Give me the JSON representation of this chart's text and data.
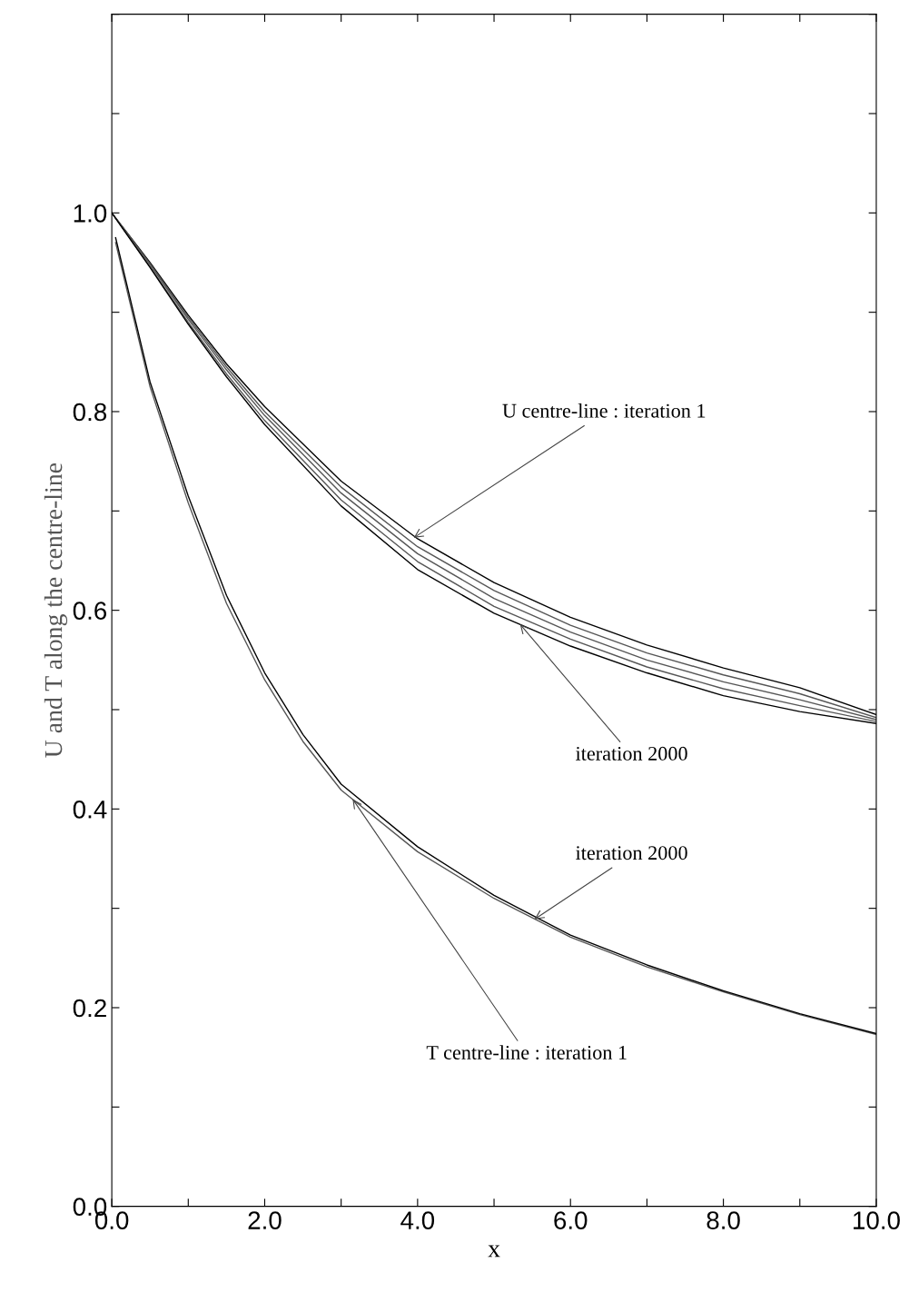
{
  "chart_data": {
    "type": "line",
    "xlabel": "x",
    "ylabel": "U and T along the centre-line",
    "xlim": [
      0,
      10
    ],
    "ylim": [
      0,
      1.2
    ],
    "xticks": [
      {
        "value": 0,
        "label": "0.0"
      },
      {
        "value": 1,
        "label": null
      },
      {
        "value": 2,
        "label": "2.0"
      },
      {
        "value": 3,
        "label": null
      },
      {
        "value": 4,
        "label": "4.0"
      },
      {
        "value": 5,
        "label": null
      },
      {
        "value": 6,
        "label": "6.0"
      },
      {
        "value": 7,
        "label": null
      },
      {
        "value": 8,
        "label": "8.0"
      },
      {
        "value": 9,
        "label": null
      },
      {
        "value": 10,
        "label": "10.0"
      }
    ],
    "yticks": [
      {
        "value": 0,
        "label": "0.0"
      },
      {
        "value": 0.1,
        "label": null
      },
      0.2,
      {
        "value": 0.3,
        "label": null
      },
      0.4,
      {
        "value": 0.5,
        "label": null
      },
      0.6,
      {
        "value": 0.7,
        "label": null
      },
      0.8,
      {
        "value": 0.9,
        "label": null
      },
      {
        "value": 1,
        "label": "1.0"
      },
      {
        "value": 1.1,
        "label": null
      },
      {
        "value": 1.2,
        "label": null
      }
    ],
    "grid": false,
    "legend": false,
    "marker": "none",
    "line_style": "solid",
    "series": [
      {
        "color": "#000000",
        "x": [
          0,
          0.5,
          1,
          1.5,
          2,
          3,
          4,
          5,
          6,
          7,
          8,
          9,
          10
        ],
        "values": [
          1.0,
          0.95,
          0.897,
          0.848,
          0.805,
          0.73,
          0.672,
          0.628,
          0.593,
          0.565,
          0.542,
          0.522,
          0.495
        ]
      },
      {
        "color": "#555555",
        "x": [
          0,
          0.5,
          1,
          1.5,
          2,
          3,
          4,
          5,
          6,
          7,
          8,
          9,
          10
        ],
        "values": [
          1.0,
          0.949,
          0.895,
          0.845,
          0.8,
          0.724,
          0.664,
          0.62,
          0.585,
          0.557,
          0.535,
          0.516,
          0.492
        ]
      },
      {
        "color": "#555555",
        "x": [
          0,
          0.5,
          1,
          1.5,
          2,
          3,
          4,
          5,
          6,
          7,
          8,
          9,
          10
        ],
        "values": [
          1.0,
          0.948,
          0.893,
          0.842,
          0.796,
          0.718,
          0.657,
          0.612,
          0.578,
          0.55,
          0.528,
          0.51,
          0.49
        ]
      },
      {
        "color": "#555555",
        "x": [
          0,
          0.5,
          1,
          1.5,
          2,
          3,
          4,
          5,
          6,
          7,
          8,
          9,
          10
        ],
        "values": [
          1.0,
          0.946,
          0.89,
          0.838,
          0.791,
          0.711,
          0.649,
          0.604,
          0.571,
          0.543,
          0.521,
          0.504,
          0.488
        ]
      },
      {
        "color": "#000000",
        "x": [
          0,
          0.5,
          1,
          1.5,
          2,
          3,
          4,
          5,
          6,
          7,
          8,
          9,
          10
        ],
        "values": [
          1.0,
          0.945,
          0.888,
          0.835,
          0.787,
          0.705,
          0.641,
          0.597,
          0.564,
          0.537,
          0.514,
          0.498,
          0.486
        ]
      },
      {
        "color": "#555555",
        "x": [
          0.05,
          0.5,
          1,
          1.5,
          2,
          2.5,
          3,
          4,
          5,
          6,
          7,
          8,
          9,
          10
        ],
        "values": [
          0.97,
          0.825,
          0.708,
          0.607,
          0.53,
          0.468,
          0.419,
          0.357,
          0.31,
          0.271,
          0.241,
          0.216,
          0.193,
          0.173
        ]
      },
      {
        "color": "#000000",
        "x": [
          0.05,
          0.5,
          1,
          1.5,
          2,
          2.5,
          3,
          4,
          5,
          6,
          7,
          8,
          9,
          10
        ],
        "values": [
          0.975,
          0.83,
          0.715,
          0.615,
          0.537,
          0.475,
          0.425,
          0.362,
          0.313,
          0.273,
          0.243,
          0.217,
          0.194,
          0.174
        ]
      }
    ],
    "annotations": [
      {
        "text": "U centre-line : iteration 1",
        "x": 3.95,
        "y": 0.673
      },
      {
        "text": "iteration 2000",
        "x": 5.34,
        "y": 0.586
      },
      {
        "text": "iteration 2000",
        "x": 5.53,
        "y": 0.289
      },
      {
        "text": "T centre-line : iteration 1",
        "x": 3.15,
        "y": 0.41
      }
    ]
  }
}
